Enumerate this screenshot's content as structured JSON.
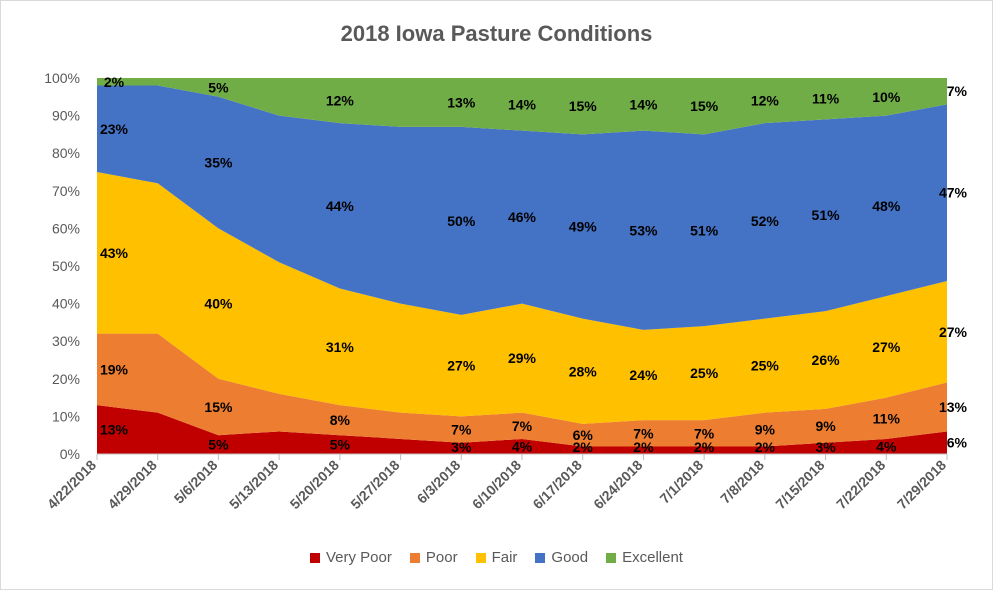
{
  "chart_data": {
    "type": "area",
    "stacked": true,
    "percent": true,
    "title": "2018 Iowa Pasture Conditions",
    "xlabel": "",
    "ylabel": "",
    "ylim": [
      0,
      100
    ],
    "yticks": [
      "0%",
      "10%",
      "20%",
      "30%",
      "40%",
      "50%",
      "60%",
      "70%",
      "80%",
      "90%",
      "100%"
    ],
    "categories": [
      "4/22/2018",
      "4/29/2018",
      "5/6/2018",
      "5/13/2018",
      "5/20/2018",
      "5/27/2018",
      "6/3/2018",
      "6/10/2018",
      "6/17/2018",
      "6/24/2018",
      "7/1/2018",
      "7/8/2018",
      "7/15/2018",
      "7/22/2018",
      "7/29/2018"
    ],
    "legend_position": "bottom",
    "grid": false,
    "series": [
      {
        "name": "Very Poor",
        "color": "#c00000",
        "values": [
          13,
          11,
          5,
          6,
          5,
          4,
          3,
          4,
          2,
          2,
          2,
          2,
          3,
          4,
          6
        ],
        "labels": [
          "13%",
          "",
          "5%",
          "",
          "5%",
          "",
          "3%",
          "4%",
          "2%",
          "2%",
          "2%",
          "2%",
          "3%",
          "4%",
          "6%"
        ]
      },
      {
        "name": "Poor",
        "color": "#ed7d31",
        "values": [
          19,
          21,
          15,
          10,
          8,
          7,
          7,
          7,
          6,
          7,
          7,
          9,
          9,
          11,
          13
        ],
        "labels": [
          "19%",
          "",
          "15%",
          "",
          "8%",
          "",
          "7%",
          "7%",
          "6%",
          "7%",
          "7%",
          "9%",
          "9%",
          "11%",
          "13%"
        ]
      },
      {
        "name": "Fair",
        "color": "#ffc000",
        "values": [
          43,
          40,
          40,
          35,
          31,
          29,
          27,
          29,
          28,
          24,
          25,
          25,
          26,
          27,
          27
        ],
        "labels": [
          "43%",
          "",
          "40%",
          "",
          "31%",
          "",
          "27%",
          "29%",
          "28%",
          "24%",
          "25%",
          "25%",
          "26%",
          "27%",
          "27%"
        ]
      },
      {
        "name": "Good",
        "color": "#4472c4",
        "values": [
          23,
          26,
          35,
          39,
          44,
          47,
          50,
          46,
          49,
          53,
          51,
          52,
          51,
          48,
          47
        ],
        "labels": [
          "23%",
          "",
          "35%",
          "",
          "44%",
          "",
          "50%",
          "46%",
          "49%",
          "53%",
          "51%",
          "52%",
          "51%",
          "48%",
          "47%"
        ]
      },
      {
        "name": "Excellent",
        "color": "#70ad47",
        "values": [
          2,
          2,
          5,
          10,
          12,
          13,
          13,
          14,
          15,
          14,
          15,
          12,
          11,
          10,
          7
        ],
        "labels": [
          "2%",
          "",
          "5%",
          "",
          "12%",
          "",
          "13%",
          "14%",
          "15%",
          "14%",
          "15%",
          "12%",
          "11%",
          "10%",
          "7%"
        ]
      }
    ]
  }
}
